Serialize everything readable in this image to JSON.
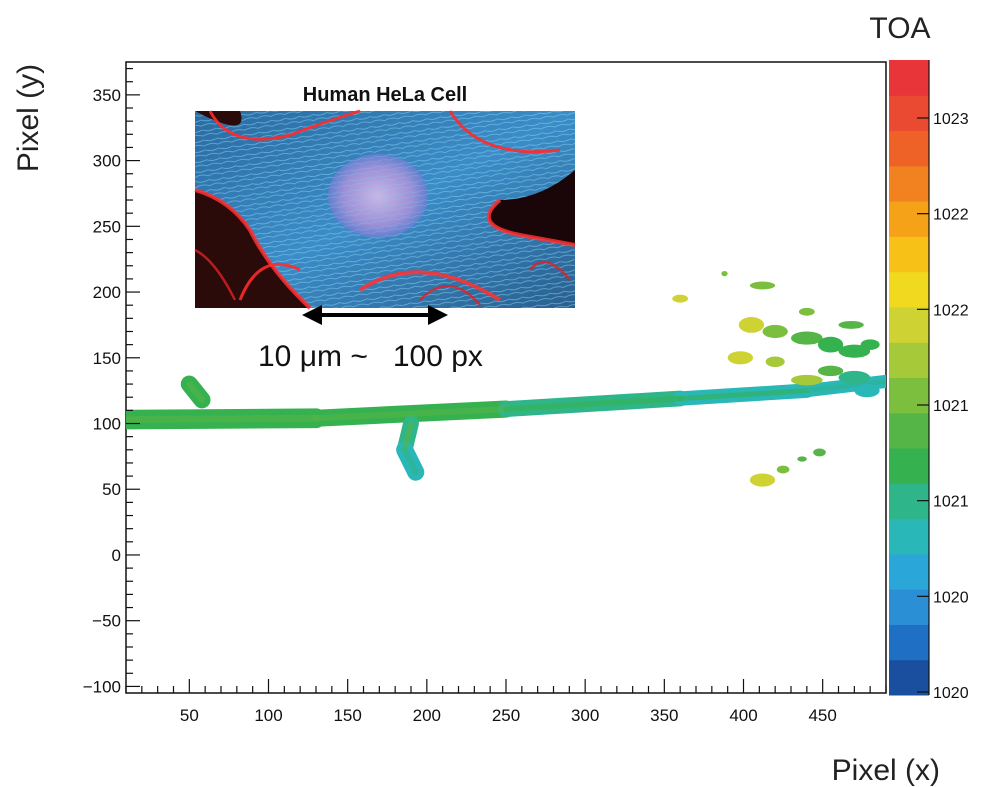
{
  "chart_data": {
    "type": "heatmap",
    "title": "",
    "xlabel": "Pixel (x)",
    "ylabel": "Pixel (y)",
    "xlim": [
      10,
      490
    ],
    "ylim": [
      -105,
      375
    ],
    "x_ticks": [
      50,
      100,
      150,
      200,
      250,
      300,
      350,
      400,
      450
    ],
    "y_ticks": [
      -100,
      -50,
      0,
      50,
      100,
      150,
      200,
      250,
      300,
      350
    ],
    "colorbar": {
      "title": "TOA",
      "tick_labels": [
        "1023",
        "1022",
        "1022",
        "1021",
        "1021",
        "1020",
        "1020"
      ],
      "colors": [
        "#1a4fa0",
        "#1f6fc4",
        "#2b8fd6",
        "#2aa7d8",
        "#29b7b8",
        "#2fb58a",
        "#35b24f",
        "#55b547",
        "#7cbf3f",
        "#a6c93a",
        "#cfd233",
        "#f0d91f",
        "#f8c117",
        "#f6a219",
        "#f2821f",
        "#ee6228",
        "#ea4a31",
        "#e8353a"
      ]
    },
    "inset": {
      "title": "Human HeLa Cell",
      "scale_text": "10 μm ~   100 px"
    },
    "track_segments": [
      {
        "x0": 12,
        "y0": 103,
        "x1": 130,
        "y1": 104,
        "w": 15,
        "c": 0.35
      },
      {
        "x0": 130,
        "y0": 104,
        "x1": 250,
        "y1": 111,
        "w": 13,
        "c": 0.34
      },
      {
        "x0": 250,
        "y0": 111,
        "x1": 360,
        "y1": 119,
        "w": 12,
        "c": 0.3
      },
      {
        "x0": 360,
        "y0": 119,
        "x1": 440,
        "y1": 125,
        "w": 11,
        "c": 0.26
      },
      {
        "x0": 440,
        "y0": 125,
        "x1": 490,
        "y1": 132,
        "w": 10,
        "c": 0.23
      },
      {
        "x0": 190,
        "y0": 100,
        "x1": 186,
        "y1": 80,
        "w": 12,
        "c": 0.32
      },
      {
        "x0": 186,
        "y0": 80,
        "x1": 193,
        "y1": 63,
        "w": 13,
        "c": 0.22
      },
      {
        "x0": 50,
        "y0": 130,
        "x1": 58,
        "y1": 118,
        "w": 13,
        "c": 0.33
      }
    ],
    "clusters": [
      {
        "x": 405,
        "y": 175,
        "rx": 8,
        "ry": 6,
        "c": 0.58
      },
      {
        "x": 420,
        "y": 170,
        "rx": 8,
        "ry": 5,
        "c": 0.45
      },
      {
        "x": 440,
        "y": 165,
        "rx": 10,
        "ry": 5,
        "c": 0.4
      },
      {
        "x": 455,
        "y": 160,
        "rx": 8,
        "ry": 6,
        "c": 0.37
      },
      {
        "x": 470,
        "y": 155,
        "rx": 10,
        "ry": 5,
        "c": 0.35
      },
      {
        "x": 480,
        "y": 160,
        "rx": 6,
        "ry": 4,
        "c": 0.34
      },
      {
        "x": 468,
        "y": 175,
        "rx": 8,
        "ry": 3,
        "c": 0.4
      },
      {
        "x": 440,
        "y": 185,
        "rx": 5,
        "ry": 3,
        "c": 0.45
      },
      {
        "x": 398,
        "y": 150,
        "rx": 8,
        "ry": 5,
        "c": 0.6
      },
      {
        "x": 420,
        "y": 147,
        "rx": 6,
        "ry": 4,
        "c": 0.5
      },
      {
        "x": 440,
        "y": 133,
        "rx": 10,
        "ry": 4,
        "c": 0.55
      },
      {
        "x": 455,
        "y": 140,
        "rx": 8,
        "ry": 4,
        "c": 0.4
      },
      {
        "x": 470,
        "y": 135,
        "rx": 10,
        "ry": 5,
        "c": 0.3
      },
      {
        "x": 478,
        "y": 125,
        "rx": 8,
        "ry": 5,
        "c": 0.25
      },
      {
        "x": 360,
        "y": 195,
        "rx": 5,
        "ry": 3,
        "c": 0.58
      },
      {
        "x": 412,
        "y": 205,
        "rx": 8,
        "ry": 3,
        "c": 0.45
      },
      {
        "x": 388,
        "y": 214,
        "rx": 2,
        "ry": 2,
        "c": 0.45
      },
      {
        "x": 412,
        "y": 57,
        "rx": 8,
        "ry": 5,
        "c": 0.58
      },
      {
        "x": 425,
        "y": 65,
        "rx": 4,
        "ry": 3,
        "c": 0.45
      },
      {
        "x": 437,
        "y": 73,
        "rx": 3,
        "ry": 2,
        "c": 0.4
      },
      {
        "x": 448,
        "y": 78,
        "rx": 4,
        "ry": 3,
        "c": 0.43
      }
    ]
  }
}
